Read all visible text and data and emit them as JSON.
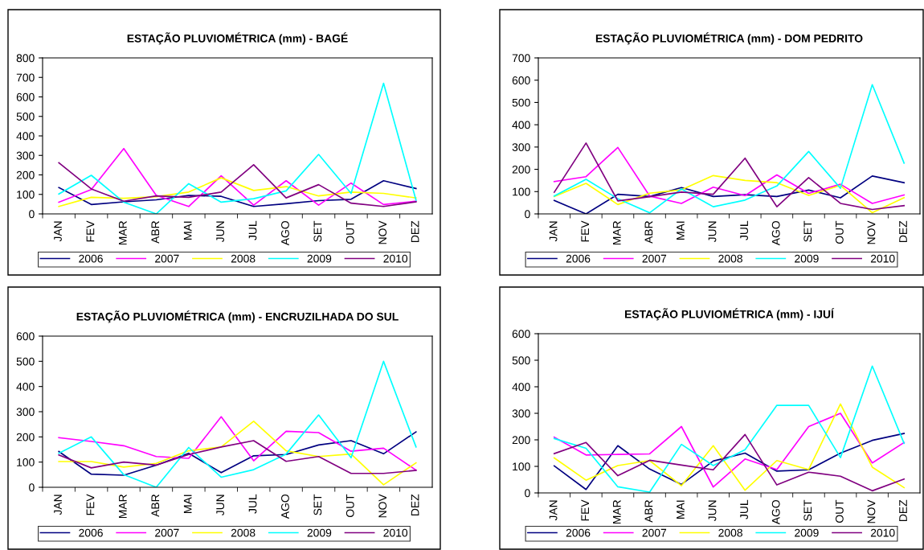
{
  "chart_data": [
    {
      "type": "line",
      "title": "ESTAÇÃO PLUVIOMÉTRICA (mm) - BAGÉ",
      "categories": [
        "JAN",
        "FEV",
        "MAR",
        "ABR",
        "MAI",
        "JUN",
        "JUL",
        "AGO",
        "SET",
        "OUT",
        "NOV",
        "DEZ"
      ],
      "ylim": [
        0,
        800
      ],
      "yticks": [
        0,
        100,
        200,
        300,
        400,
        500,
        600,
        700,
        800
      ],
      "grid": false,
      "legend": "bottom",
      "marker": "none",
      "line_style": "solid",
      "series": [
        {
          "name": "2006",
          "color": "#000080",
          "values": [
            135,
            48,
            62,
            72,
            95,
            90,
            38,
            52,
            68,
            75,
            170,
            130
          ]
        },
        {
          "name": "2007",
          "color": "#ff00ff",
          "values": [
            60,
            125,
            335,
            95,
            38,
            195,
            45,
            170,
            45,
            158,
            48,
            65
          ]
        },
        {
          "name": "2008",
          "color": "#ffff00",
          "values": [
            38,
            85,
            80,
            88,
            112,
            185,
            120,
            140,
            92,
            112,
            105,
            82
          ]
        },
        {
          "name": "2009",
          "color": "#00ffff",
          "values": [
            102,
            198,
            60,
            0,
            155,
            60,
            78,
            118,
            305,
            105,
            670,
            70
          ]
        },
        {
          "name": "2010",
          "color": "#800080",
          "values": [
            262,
            128,
            65,
            92,
            85,
            112,
            252,
            82,
            150,
            55,
            38,
            62
          ]
        }
      ]
    },
    {
      "type": "line",
      "title": "ESTAÇÃO PLUVIOMÉTRICA (mm) - DOM PEDRITO",
      "categories": [
        "JAN",
        "FEV",
        "MAR",
        "ABR",
        "MAI",
        "JUN",
        "JUL",
        "AGO",
        "SET",
        "OUT",
        "NOV",
        "DEZ"
      ],
      "ylim": [
        0,
        700
      ],
      "yticks": [
        0,
        100,
        200,
        300,
        400,
        500,
        600,
        700
      ],
      "grid": false,
      "legend": "bottom",
      "marker": "none",
      "line_style": "solid",
      "series": [
        {
          "name": "2006",
          "color": "#000080",
          "values": [
            60,
            0,
            88,
            78,
            118,
            78,
            86,
            78,
            107,
            72,
            170,
            140
          ]
        },
        {
          "name": "2007",
          "color": "#ff00ff",
          "values": [
            145,
            167,
            298,
            80,
            47,
            120,
            82,
            175,
            92,
            133,
            47,
            85
          ]
        },
        {
          "name": "2008",
          "color": "#ffff00",
          "values": [
            78,
            137,
            42,
            93,
            108,
            172,
            150,
            140,
            83,
            128,
            5,
            73
          ]
        },
        {
          "name": "2009",
          "color": "#00ffff",
          "values": [
            80,
            155,
            68,
            5,
            112,
            32,
            62,
            125,
            280,
            115,
            580,
            228
          ]
        },
        {
          "name": "2010",
          "color": "#800080",
          "values": [
            97,
            318,
            58,
            77,
            98,
            88,
            250,
            32,
            163,
            47,
            20,
            37
          ]
        }
      ]
    },
    {
      "type": "line",
      "title": "ESTAÇÃO PLUVIOMÉTRICA (mm) - ENCRUZILHADA DO SUL",
      "categories": [
        "JAN",
        "FEV",
        "MAR",
        "ABR",
        "MAI",
        "JUN",
        "JUL",
        "AGO",
        "SET",
        "OUT",
        "NOV",
        "DEZ"
      ],
      "ylim": [
        0,
        600
      ],
      "yticks": [
        0,
        100,
        200,
        300,
        400,
        500,
        600
      ],
      "grid": false,
      "legend": "bottom",
      "marker": "none",
      "line_style": "solid",
      "series": [
        {
          "name": "2006",
          "color": "#000080",
          "values": [
            142,
            52,
            48,
            88,
            135,
            58,
            125,
            130,
            168,
            185,
            133,
            220
          ]
        },
        {
          "name": "2007",
          "color": "#ff00ff",
          "values": [
            197,
            182,
            165,
            122,
            115,
            280,
            105,
            222,
            217,
            143,
            155,
            68
          ]
        },
        {
          "name": "2008",
          "color": "#ffff00",
          "values": [
            102,
            102,
            80,
            95,
            145,
            160,
            262,
            145,
            122,
            132,
            10,
            97
          ]
        },
        {
          "name": "2009",
          "color": "#00ffff",
          "values": [
            135,
            200,
            50,
            0,
            158,
            40,
            70,
            132,
            287,
            117,
            500,
            160
          ]
        },
        {
          "name": "2010",
          "color": "#800080",
          "values": [
            128,
            77,
            100,
            88,
            130,
            160,
            185,
            103,
            122,
            55,
            55,
            67
          ]
        }
      ]
    },
    {
      "type": "line",
      "title": "ESTAÇÃO PLUVIOMÉTRICA (mm) - IJUÍ",
      "categories": [
        "JAN",
        "FEV",
        "MAR",
        "ABR",
        "MAI",
        "JUN",
        "JUL",
        "AGO",
        "SET",
        "OUT",
        "NOV",
        "DEZ"
      ],
      "ylim": [
        0,
        600
      ],
      "yticks": [
        0,
        100,
        200,
        300,
        400,
        500,
        600
      ],
      "grid": false,
      "legend": "bottom",
      "marker": "none",
      "line_style": "solid",
      "series": [
        {
          "name": "2006",
          "color": "#000080",
          "values": [
            102,
            13,
            178,
            90,
            32,
            120,
            150,
            82,
            87,
            150,
            198,
            224
          ]
        },
        {
          "name": "2007",
          "color": "#ff00ff",
          "values": [
            210,
            143,
            145,
            147,
            250,
            22,
            128,
            88,
            250,
            300,
            113,
            190
          ]
        },
        {
          "name": "2008",
          "color": "#ffff00",
          "values": [
            132,
            48,
            103,
            122,
            27,
            178,
            10,
            122,
            88,
            335,
            97,
            20
          ]
        },
        {
          "name": "2009",
          "color": "#00ffff",
          "values": [
            205,
            168,
            23,
            3,
            183,
            103,
            163,
            330,
            330,
            133,
            478,
            187
          ]
        },
        {
          "name": "2010",
          "color": "#800080",
          "values": [
            148,
            190,
            65,
            123,
            105,
            87,
            220,
            30,
            78,
            63,
            8,
            52
          ]
        }
      ]
    }
  ]
}
